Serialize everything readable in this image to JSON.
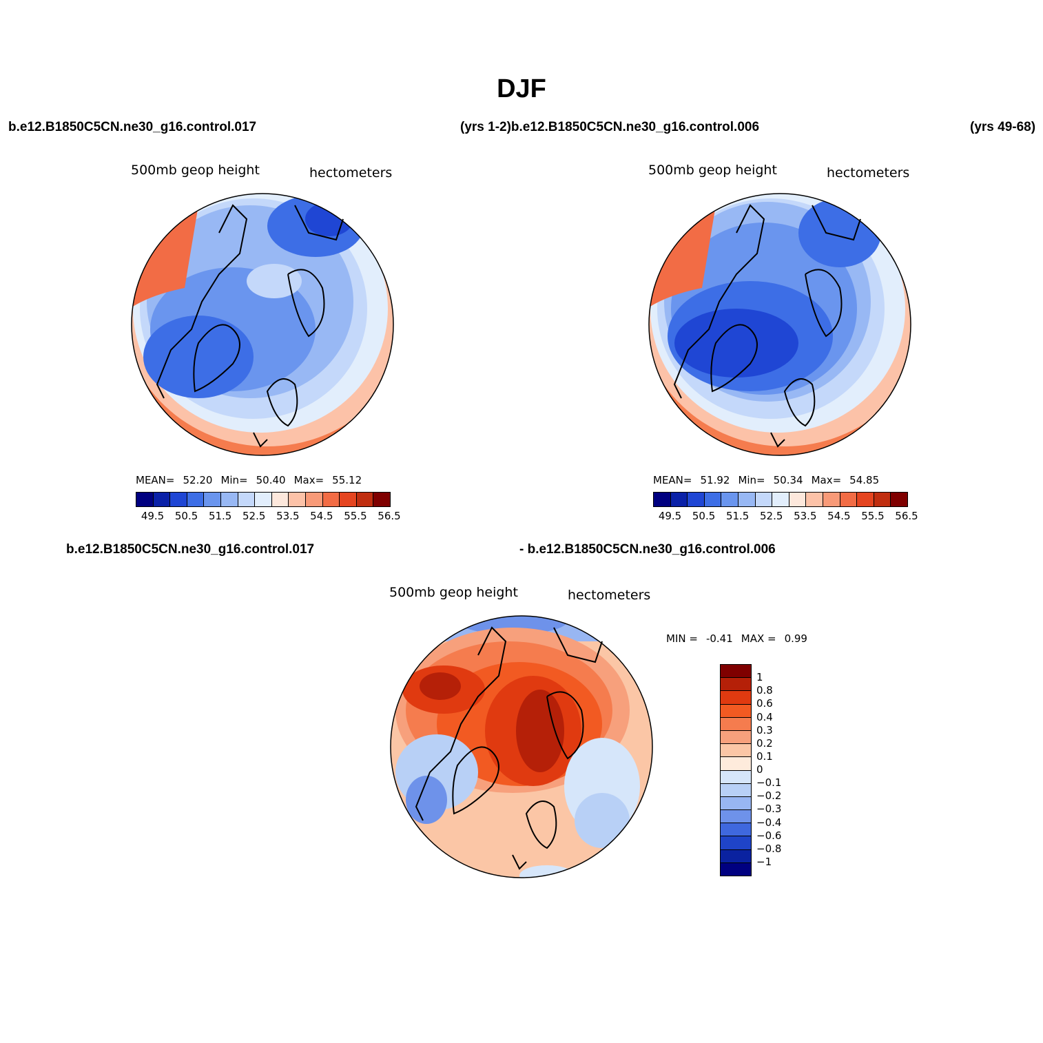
{
  "title": "DJF",
  "headers": {
    "top_left_case": "b.e12.B1850C5CN.ne30_g16.control.017",
    "top_mid_case": "(yrs 1-2)b.e12.B1850C5CN.ne30_g16.control.006",
    "top_right_years": "(yrs 49-68)",
    "diff_left": "b.e12.B1850C5CN.ne30_g16.control.017",
    "diff_right": "- b.e12.B1850C5CN.ne30_g16.control.006"
  },
  "panels": [
    {
      "variable": "500mb geop height",
      "units": "hectometers",
      "mean_label": "MEAN=",
      "mean": "52.20",
      "min_label": "Min=",
      "min": "50.40",
      "max_label": "Max=",
      "max": "55.12"
    },
    {
      "variable": "500mb geop height",
      "units": "hectometers",
      "mean_label": "MEAN=",
      "mean": "51.92",
      "min_label": "Min=",
      "min": "50.34",
      "max_label": "Max=",
      "max": "54.85"
    },
    {
      "variable": "500mb geop height",
      "units": "hectometers",
      "min_label": "MIN =",
      "min": "-0.41",
      "max_label": "MAX =",
      "max": "0.99"
    }
  ],
  "abs_colorbar": {
    "colors": [
      "#000080",
      "#0a21a8",
      "#1f46d4",
      "#3d6ee6",
      "#6a95ee",
      "#98b8f4",
      "#c4d8fa",
      "#e2eefc",
      "#fde8dc",
      "#fcc2a8",
      "#f89a78",
      "#f26c45",
      "#e54520",
      "#c02e10",
      "#7f0000"
    ],
    "tick_labels": [
      "49.5",
      "50.5",
      "51.5",
      "52.5",
      "53.5",
      "54.5",
      "55.5",
      "56.5"
    ]
  },
  "diff_colorbar": {
    "colors": [
      "#7f0000",
      "#b52008",
      "#e03a10",
      "#f25a22",
      "#f57c4e",
      "#f7a07c",
      "#fbc6a6",
      "#feebdc",
      "#d6e6fa",
      "#b8d0f6",
      "#98b6f2",
      "#6e92ea",
      "#3f68de",
      "#1f44c8",
      "#0a22a0",
      "#000080"
    ],
    "tick_labels": [
      "1",
      "0.8",
      "0.6",
      "0.4",
      "0.3",
      "0.2",
      "0.1",
      "0",
      "−0.1",
      "−0.2",
      "−0.3",
      "−0.4",
      "−0.6",
      "−0.8",
      "−1"
    ]
  }
}
